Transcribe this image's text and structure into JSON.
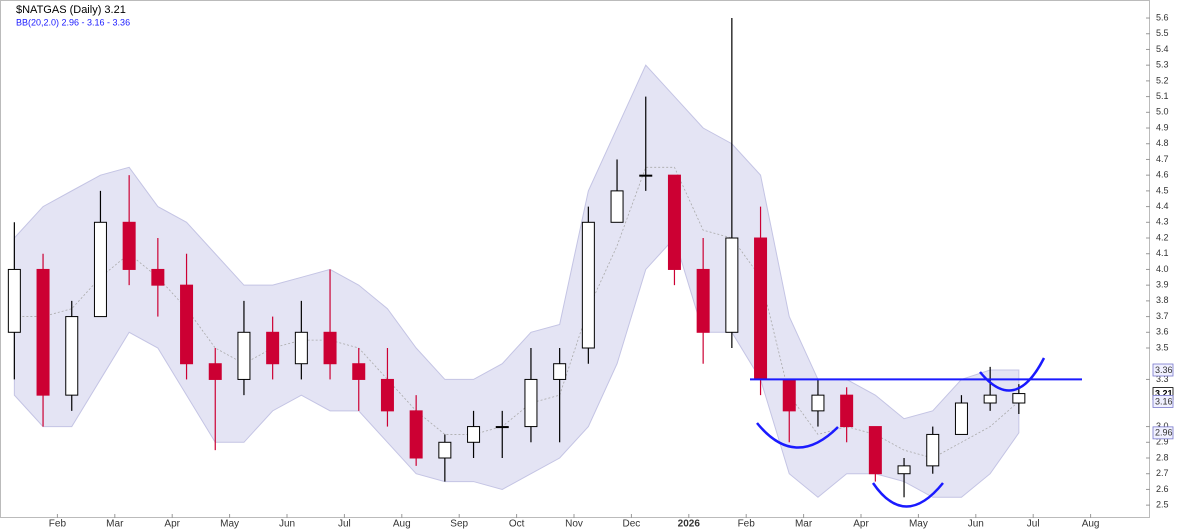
{
  "chart_data": {
    "type": "candlestick",
    "title": "$NATGAS (Daily) 3.21",
    "subtitle": "BB(20,2.0) 2.96 - 3.16 - 3.36",
    "categories": [
      null,
      null,
      "Feb",
      null,
      "Mar",
      null,
      "Apr",
      null,
      "May",
      null,
      "Jun",
      null,
      "Jul",
      null,
      "Aug",
      null,
      "Sep",
      null,
      "Oct",
      null,
      "Nov",
      null,
      "Dec",
      null,
      "2026",
      null,
      "Feb",
      null,
      "Mar",
      null,
      "Apr",
      null,
      "May",
      null,
      "Jun",
      null,
      "Jul",
      null,
      "Aug",
      null
    ],
    "open": [
      3.6,
      4.0,
      3.2,
      3.7,
      4.3,
      4.0,
      3.9,
      3.4,
      3.3,
      3.6,
      3.4,
      3.6,
      3.4,
      3.3,
      3.1,
      2.8,
      2.9,
      3.0,
      3.0,
      3.3,
      3.5,
      4.3,
      4.6,
      4.6,
      4.0,
      3.6,
      4.2,
      3.3,
      3.1,
      3.2,
      3.0,
      2.7,
      2.75,
      2.95,
      3.15,
      3.15,
      null,
      null,
      null,
      null
    ],
    "high": [
      4.3,
      4.1,
      3.8,
      4.5,
      4.6,
      4.2,
      4.1,
      3.5,
      3.8,
      3.7,
      3.8,
      4.0,
      3.5,
      3.5,
      3.2,
      2.95,
      3.1,
      3.1,
      3.5,
      3.5,
      4.4,
      4.7,
      5.1,
      4.6,
      4.2,
      5.6,
      4.4,
      3.3,
      3.3,
      3.25,
      3.0,
      2.8,
      3.0,
      3.2,
      3.38,
      3.27,
      null,
      null,
      null,
      null
    ],
    "low": [
      3.3,
      3.0,
      3.1,
      3.7,
      3.9,
      3.7,
      3.3,
      2.85,
      3.2,
      3.3,
      3.3,
      3.3,
      3.1,
      3.0,
      2.75,
      2.65,
      2.8,
      2.8,
      2.9,
      2.9,
      3.4,
      4.3,
      4.5,
      3.9,
      3.4,
      3.5,
      3.2,
      2.9,
      3.0,
      2.9,
      2.65,
      2.55,
      2.7,
      2.95,
      3.1,
      3.08,
      null,
      null,
      null,
      null
    ],
    "close": [
      4.0,
      3.2,
      3.7,
      4.3,
      4.0,
      3.9,
      3.4,
      3.3,
      3.6,
      3.4,
      3.6,
      3.4,
      3.3,
      3.1,
      2.8,
      2.9,
      3.0,
      3.0,
      3.3,
      3.4,
      4.3,
      4.5,
      4.6,
      4.0,
      3.6,
      4.2,
      3.3,
      3.1,
      3.2,
      3.0,
      2.7,
      2.75,
      2.95,
      3.15,
      3.2,
      3.21,
      null,
      null,
      null,
      null
    ],
    "up_color": "#000000",
    "down_color": "#cc0033",
    "bands": {
      "color": "#e4e4f4",
      "upper": [
        4.2,
        4.4,
        4.5,
        4.6,
        4.65,
        4.4,
        4.3,
        4.1,
        3.9,
        3.9,
        3.95,
        4.0,
        3.9,
        3.75,
        3.5,
        3.3,
        3.3,
        3.4,
        3.6,
        3.65,
        4.5,
        4.9,
        5.3,
        5.1,
        4.9,
        4.8,
        4.6,
        3.7,
        3.3,
        3.3,
        3.2,
        3.05,
        3.1,
        3.3,
        3.36,
        3.36,
        null,
        null,
        null,
        null
      ],
      "middle": [
        3.7,
        3.7,
        3.75,
        3.95,
        4.1,
        3.95,
        3.75,
        3.5,
        3.4,
        3.5,
        3.55,
        3.55,
        3.5,
        3.3,
        3.1,
        2.95,
        2.95,
        3.0,
        3.15,
        3.2,
        3.75,
        4.15,
        4.65,
        4.65,
        4.25,
        4.2,
        3.95,
        3.2,
        2.95,
        3.0,
        2.95,
        2.85,
        2.8,
        2.9,
        3.0,
        3.16,
        null,
        null,
        null,
        null
      ],
      "lower": [
        3.2,
        3.0,
        3.0,
        3.3,
        3.6,
        3.5,
        3.2,
        2.9,
        2.9,
        3.1,
        3.2,
        3.1,
        3.1,
        2.9,
        2.7,
        2.65,
        2.65,
        2.6,
        2.7,
        2.8,
        3.0,
        3.4,
        4.0,
        4.2,
        3.6,
        3.6,
        3.3,
        2.7,
        2.55,
        2.7,
        2.7,
        2.65,
        2.55,
        2.55,
        2.7,
        2.96,
        null,
        null,
        null,
        null
      ]
    },
    "resistance": 3.3,
    "annotation_color": "#1a1aff",
    "ylim": [
      2.45,
      5.66
    ],
    "yticks": [
      2.5,
      2.6,
      2.7,
      2.8,
      2.9,
      {
        "value": 3,
        "label": "3.0"
      },
      3.3,
      3.5,
      3.6,
      3.7,
      3.8,
      3.9,
      {
        "value": 4,
        "label": "4.0"
      },
      4.1,
      4.2,
      4.3,
      4.4,
      4.5,
      4.6,
      4.7,
      4.8,
      4.9,
      {
        "value": 5,
        "label": "5.0"
      },
      5.1,
      5.2,
      5.3,
      5.4,
      5.5,
      5.6
    ],
    "price_markers": [
      3.36,
      3.21,
      3.16,
      2.96
    ]
  }
}
